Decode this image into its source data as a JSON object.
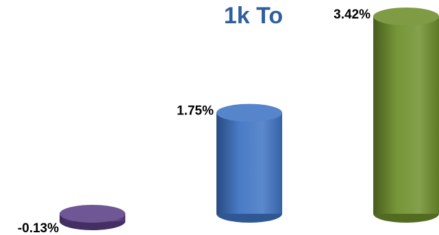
{
  "chart_data": {
    "type": "bar",
    "title": "1k To",
    "categories": [
      "",
      "",
      ""
    ],
    "values": [
      -0.13,
      1.75,
      3.42
    ],
    "data_labels": [
      "-0.13%",
      "1.75%",
      "3.42%"
    ],
    "colors": {
      "bars": [
        "#5b3f87",
        "#3f74c4",
        "#6e8f2c"
      ],
      "title": "#2f5f9e"
    },
    "xlabel": "",
    "ylabel": "",
    "grid": false,
    "legend": "none",
    "style": "3d-cylinder"
  }
}
